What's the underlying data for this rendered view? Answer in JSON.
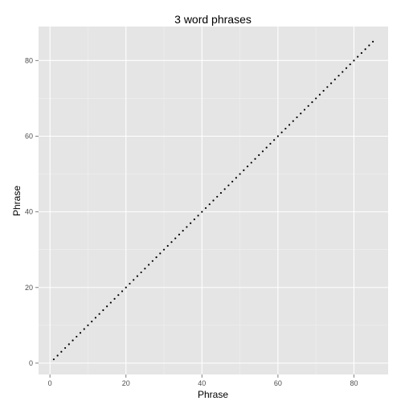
{
  "chart_data": {
    "type": "scatter",
    "title": "3 word phrases",
    "xlabel": "Phrase",
    "ylabel": "Phrase",
    "xlim": [
      -3,
      89
    ],
    "ylim": [
      -3,
      89
    ],
    "x_ticks": [
      0,
      20,
      40,
      60,
      80
    ],
    "y_ticks": [
      0,
      20,
      40,
      60,
      80
    ],
    "grid": true,
    "background": "#e5e5e5",
    "point_color": "#000000",
    "series": [
      {
        "x": [
          1,
          2,
          3,
          4,
          5,
          6,
          7,
          8,
          9,
          10,
          11,
          12,
          13,
          14,
          15,
          16,
          17,
          18,
          19,
          20,
          21,
          22,
          23,
          24,
          25,
          26,
          27,
          28,
          29,
          30,
          31,
          32,
          33,
          34,
          35,
          36,
          37,
          38,
          39,
          40,
          41,
          42,
          43,
          44,
          45,
          46,
          47,
          48,
          49,
          50,
          51,
          52,
          53,
          54,
          55,
          56,
          57,
          58,
          59,
          60,
          61,
          62,
          63,
          64,
          65,
          66,
          67,
          68,
          69,
          70,
          71,
          72,
          73,
          74,
          75,
          76,
          77,
          78,
          79,
          80,
          81,
          82,
          83,
          84,
          85
        ],
        "y": [
          1,
          2,
          3,
          4,
          5,
          6,
          7,
          8,
          9,
          10,
          11,
          12,
          13,
          14,
          15,
          16,
          17,
          18,
          19,
          20,
          21,
          22,
          23,
          24,
          25,
          26,
          27,
          28,
          29,
          30,
          31,
          32,
          33,
          34,
          35,
          36,
          37,
          38,
          39,
          40,
          41,
          42,
          43,
          44,
          45,
          46,
          47,
          48,
          49,
          50,
          51,
          52,
          53,
          54,
          55,
          56,
          57,
          58,
          59,
          60,
          61,
          62,
          63,
          64,
          65,
          66,
          67,
          68,
          69,
          70,
          71,
          72,
          73,
          74,
          75,
          76,
          77,
          78,
          79,
          80,
          81,
          82,
          83,
          84,
          85
        ]
      }
    ]
  }
}
